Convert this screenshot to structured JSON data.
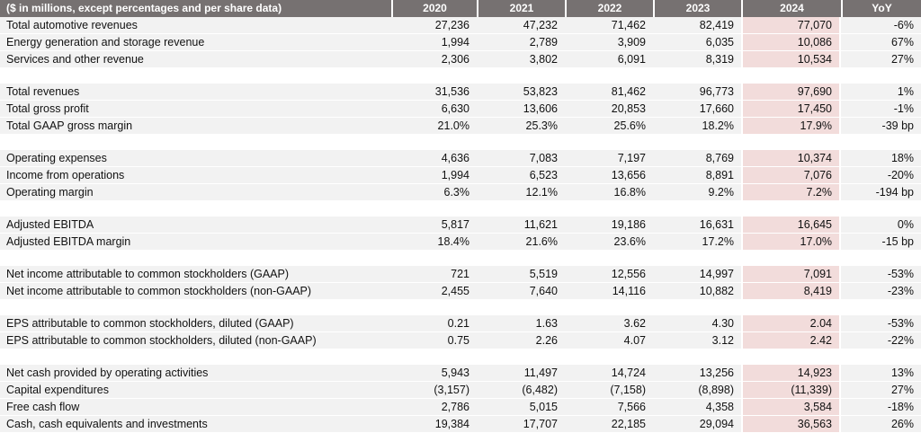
{
  "colors": {
    "header_bg": "#767171",
    "header_text": "#ffffff",
    "row_bg": "#f2f2f2",
    "highlight_2024_bg": "#f2dcdb"
  },
  "table": {
    "header": {
      "label": "($ in millions, except percentages and per share data)",
      "years": [
        "2020",
        "2021",
        "2022",
        "2023",
        "2024"
      ],
      "yoy": "YoY"
    },
    "sections": [
      {
        "rows": [
          {
            "label": "Total automotive revenues",
            "values": [
              "27,236",
              "47,232",
              "71,462",
              "82,419",
              "77,070"
            ],
            "yoy": "-6%"
          },
          {
            "label": "Energy generation and storage revenue",
            "values": [
              "1,994",
              "2,789",
              "3,909",
              "6,035",
              "10,086"
            ],
            "yoy": "67%"
          },
          {
            "label": "Services and other revenue",
            "values": [
              "2,306",
              "3,802",
              "6,091",
              "8,319",
              "10,534"
            ],
            "yoy": "27%"
          }
        ]
      },
      {
        "rows": [
          {
            "label": "Total revenues",
            "values": [
              "31,536",
              "53,823",
              "81,462",
              "96,773",
              "97,690"
            ],
            "yoy": "1%"
          },
          {
            "label": "Total gross profit",
            "values": [
              "6,630",
              "13,606",
              "20,853",
              "17,660",
              "17,450"
            ],
            "yoy": "-1%"
          },
          {
            "label": "Total GAAP gross margin",
            "values": [
              "21.0%",
              "25.3%",
              "25.6%",
              "18.2%",
              "17.9%"
            ],
            "yoy": "-39 bp"
          }
        ]
      },
      {
        "rows": [
          {
            "label": "Operating expenses",
            "values": [
              "4,636",
              "7,083",
              "7,197",
              "8,769",
              "10,374"
            ],
            "yoy": "18%"
          },
          {
            "label": "Income from operations",
            "values": [
              "1,994",
              "6,523",
              "13,656",
              "8,891",
              "7,076"
            ],
            "yoy": "-20%"
          },
          {
            "label": "Operating margin",
            "values": [
              "6.3%",
              "12.1%",
              "16.8%",
              "9.2%",
              "7.2%"
            ],
            "yoy": "-194 bp"
          }
        ]
      },
      {
        "rows": [
          {
            "label": "Adjusted EBITDA",
            "values": [
              "5,817",
              "11,621",
              "19,186",
              "16,631",
              "16,645"
            ],
            "yoy": "0%"
          },
          {
            "label": "Adjusted EBITDA margin",
            "values": [
              "18.4%",
              "21.6%",
              "23.6%",
              "17.2%",
              "17.0%"
            ],
            "yoy": "-15 bp"
          }
        ]
      },
      {
        "rows": [
          {
            "label": "Net income attributable to common stockholders (GAAP)",
            "values": [
              "721",
              "5,519",
              "12,556",
              "14,997",
              "7,091"
            ],
            "yoy": "-53%"
          },
          {
            "label": "Net income attributable to common stockholders (non-GAAP)",
            "values": [
              "2,455",
              "7,640",
              "14,116",
              "10,882",
              "8,419"
            ],
            "yoy": "-23%"
          }
        ]
      },
      {
        "rows": [
          {
            "label": "EPS attributable to common stockholders, diluted (GAAP)",
            "values": [
              "0.21",
              "1.63",
              "3.62",
              "4.30",
              "2.04"
            ],
            "yoy": "-53%"
          },
          {
            "label": "EPS attributable to common stockholders, diluted (non-GAAP)",
            "values": [
              "0.75",
              "2.26",
              "4.07",
              "3.12",
              "2.42"
            ],
            "yoy": "-22%"
          }
        ]
      },
      {
        "rows": [
          {
            "label": "Net cash provided by operating activities",
            "values": [
              "5,943",
              "11,497",
              "14,724",
              "13,256",
              "14,923"
            ],
            "yoy": "13%"
          },
          {
            "label": "Capital expenditures",
            "values": [
              "(3,157)",
              "(6,482)",
              "(7,158)",
              "(8,898)",
              "(11,339)"
            ],
            "yoy": "27%"
          },
          {
            "label": "Free cash flow",
            "values": [
              "2,786",
              "5,015",
              "7,566",
              "4,358",
              "3,584"
            ],
            "yoy": "-18%"
          },
          {
            "label": "Cash, cash equivalents and investments",
            "values": [
              "19,384",
              "17,707",
              "22,185",
              "29,094",
              "36,563"
            ],
            "yoy": "26%"
          }
        ]
      }
    ]
  }
}
